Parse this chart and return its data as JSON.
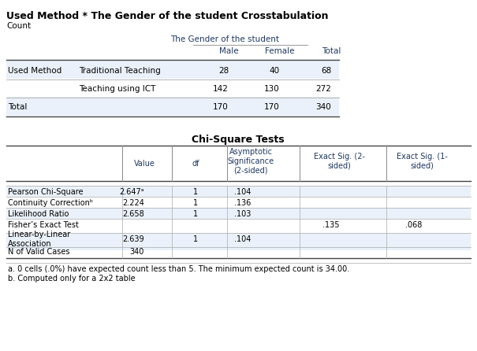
{
  "title1": "Used Method * The Gender of the student Crosstabulation",
  "count_label": "Count",
  "cross_col_header_span": "The Gender of the student",
  "cross_cols": [
    "Male",
    "Female",
    "Total"
  ],
  "cross_data": [
    [
      28,
      40,
      68
    ],
    [
      142,
      130,
      272
    ],
    [
      170,
      170,
      340
    ]
  ],
  "chi_title": "Chi-Square Tests",
  "chi_rows": [
    [
      "Pearson Chi-Square",
      "2.647ᵃ",
      "1",
      ".104",
      "",
      ""
    ],
    [
      "Continuity Correctionᵇ",
      "2.224",
      "1",
      ".136",
      "",
      ""
    ],
    [
      "Likelihood Ratio",
      "2.658",
      "1",
      ".103",
      "",
      ""
    ],
    [
      "Fisher’s Exact Test",
      "",
      "",
      "",
      ".135",
      ".068"
    ],
    [
      "Linear-by-Linear\nAssociation",
      "2.639",
      "1",
      ".104",
      "",
      ""
    ],
    [
      "N of Valid Cases",
      "340",
      "",
      "",
      "",
      ""
    ]
  ],
  "footnote_a": "a. 0 cells (.0%) have expected count less than 5. The minimum expected count is 34.00.",
  "footnote_b": "b. Computed only for a 2x2 table",
  "bg_color": "#ffffff",
  "shade1": "#dce6f1",
  "shade2": "#eaf1fa",
  "title_fs": 9,
  "body_fs": 7.5,
  "small_fs": 7
}
